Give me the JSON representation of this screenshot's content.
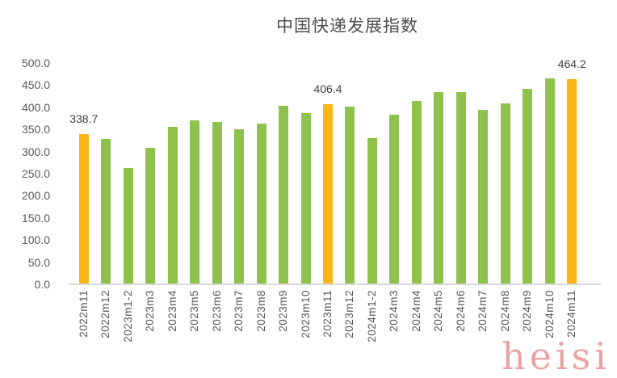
{
  "title": "中国快递发展指数",
  "watermark": "heisi",
  "colors": {
    "bar_green": "#8fc14d",
    "bar_orange": "#f8b515",
    "axis_line": "#d9d9d9",
    "axis_text": "#595959",
    "title_text": "#4d4d4d",
    "watermark_pink": "#e48c8e"
  },
  "chart_data": {
    "type": "bar",
    "title": "中国快递发展指数",
    "xlabel": "",
    "ylabel": "",
    "ylim": [
      0,
      500
    ],
    "ytick_interval": 50,
    "yticks": [
      "0.0",
      "50.0",
      "100.0",
      "150.0",
      "200.0",
      "250.0",
      "300.0",
      "350.0",
      "400.0",
      "450.0",
      "500.0"
    ],
    "grid": false,
    "legend_position": "none",
    "categories": [
      "2022m11",
      "2022m12",
      "2023m1-2",
      "2023m3",
      "2023m4",
      "2023m5",
      "2023m6",
      "2023m7",
      "2023m8",
      "2023m9",
      "2023m10",
      "2023m11",
      "2023m12",
      "2024m1-2",
      "2024m3",
      "2024m4",
      "2024m5",
      "2024m6",
      "2024m7",
      "2024m8",
      "2024m9",
      "2024m10",
      "2024m11"
    ],
    "values": [
      338.7,
      329,
      262,
      308,
      356,
      370,
      367,
      351,
      363,
      404,
      386,
      406.4,
      401,
      331,
      383,
      415,
      435,
      434,
      394,
      408,
      441,
      465,
      464.2
    ],
    "highlight_indices": [
      0,
      11,
      22
    ],
    "data_labels": {
      "0": "338.7",
      "11": "406.4",
      "22": "464.2"
    },
    "bar_color_default": "#8fc14d",
    "bar_color_highlight": "#f8b515"
  }
}
